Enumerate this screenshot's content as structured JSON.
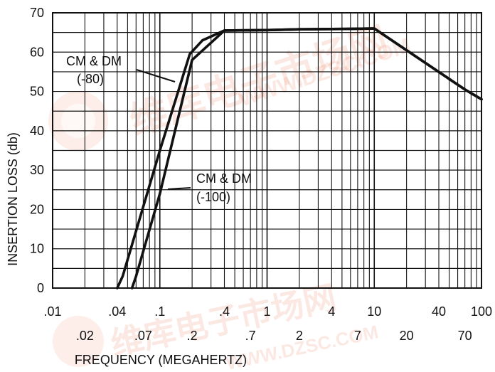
{
  "chart_data": {
    "type": "line",
    "title": "",
    "xlabel": "FREQUENCY (MEGAHERTZ)",
    "ylabel": "INSERTION LOSS (db)",
    "x_scale": "log",
    "xlim": [
      0.01,
      100
    ],
    "ylim": [
      0,
      70
    ],
    "grid": true,
    "x_ticks_upper": [
      {
        "value": 0.01,
        "label": ".01"
      },
      {
        "value": 0.04,
        "label": ".04"
      },
      {
        "value": 0.1,
        "label": ".1"
      },
      {
        "value": 0.4,
        "label": ".4"
      },
      {
        "value": 1,
        "label": "1"
      },
      {
        "value": 4,
        "label": "4"
      },
      {
        "value": 10,
        "label": "10"
      },
      {
        "value": 40,
        "label": "40"
      },
      {
        "value": 100,
        "label": "100"
      }
    ],
    "x_ticks_lower": [
      {
        "value": 0.02,
        "label": ".02"
      },
      {
        "value": 0.07,
        "label": ".07"
      },
      {
        "value": 0.2,
        "label": ".2"
      },
      {
        "value": 0.7,
        "label": ".7"
      },
      {
        "value": 2,
        "label": "2"
      },
      {
        "value": 7,
        "label": "7"
      },
      {
        "value": 20,
        "label": "20"
      },
      {
        "value": 70,
        "label": "70"
      }
    ],
    "y_ticks": [
      {
        "value": 0,
        "label": "0"
      },
      {
        "value": 10,
        "label": "10"
      },
      {
        "value": 20,
        "label": "20"
      },
      {
        "value": 30,
        "label": "30"
      },
      {
        "value": 40,
        "label": "40"
      },
      {
        "value": 50,
        "label": "50"
      },
      {
        "value": 60,
        "label": "60"
      },
      {
        "value": 70,
        "label": "70"
      }
    ],
    "series": [
      {
        "name": "CM & DM (-80)",
        "x": [
          0.04,
          0.045,
          0.1,
          0.19,
          0.25,
          0.4,
          1,
          2,
          5,
          10,
          70,
          100
        ],
        "y": [
          0,
          3,
          35,
          59.5,
          63,
          65.5,
          65.6,
          65.8,
          65.9,
          66,
          50.5,
          48
        ]
      },
      {
        "name": "CM & DM (-100)",
        "x": [
          0.055,
          0.06,
          0.1,
          0.2,
          0.4,
          1,
          2,
          5,
          10,
          70,
          100
        ],
        "y": [
          0,
          3,
          24,
          58,
          65.5,
          65.6,
          65.8,
          65.9,
          66,
          50.5,
          48
        ]
      }
    ],
    "annotations": [
      {
        "line1": "CM & DM",
        "line2": "(-80)"
      },
      {
        "line1": "CM & DM",
        "line2": "(-100)"
      }
    ]
  },
  "colors": {
    "line": "#111111",
    "grid": "#111111",
    "watermark": "#e9542a",
    "background": "#ffffff"
  }
}
